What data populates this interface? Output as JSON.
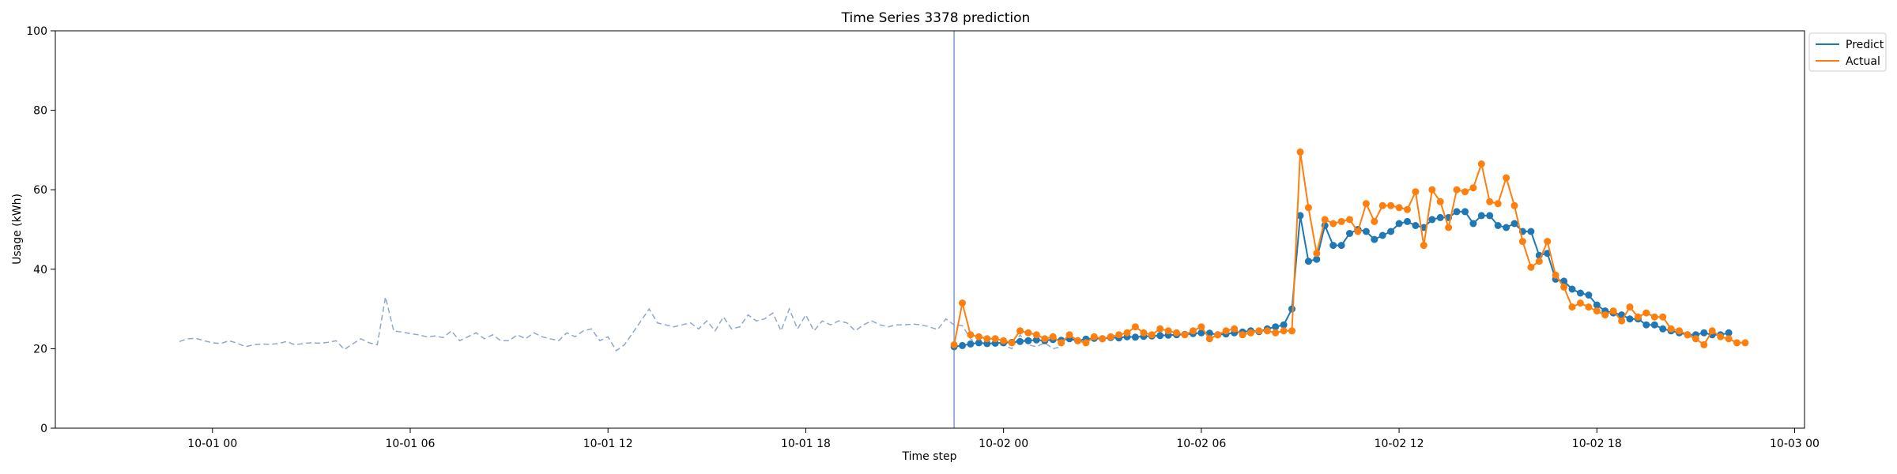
{
  "chart_data": {
    "type": "line",
    "title": "Time Series 3378 prediction",
    "xlabel": "Time step",
    "ylabel": "Usage (kWh)",
    "ylim": [
      0,
      100
    ],
    "yticks": [
      0,
      20,
      40,
      60,
      80,
      100
    ],
    "xlim": [
      "2023-09-30 19:14",
      "2023-10-03 00:18"
    ],
    "xticks": [
      {
        "t": "2023-10-01 00:00",
        "label": "10-01 00"
      },
      {
        "t": "2023-10-01 06:00",
        "label": "10-01 06"
      },
      {
        "t": "2023-10-01 12:00",
        "label": "10-01 12"
      },
      {
        "t": "2023-10-01 18:00",
        "label": "10-01 18"
      },
      {
        "t": "2023-10-02 00:00",
        "label": "10-02 00"
      },
      {
        "t": "2023-10-02 06:00",
        "label": "10-02 06"
      },
      {
        "t": "2023-10-02 12:00",
        "label": "10-02 12"
      },
      {
        "t": "2023-10-02 18:00",
        "label": "10-02 18"
      },
      {
        "t": "2023-10-03 00:00",
        "label": "10-03 00"
      }
    ],
    "grid": false,
    "legend_position": "outside-top-right",
    "forecast_start": "2023-10-01 22:30",
    "history": {
      "start": "2023-09-30 23:00",
      "step_minutes": 15,
      "color": "#8fa8c8",
      "style": "dashed",
      "values": [
        21.8,
        22.5,
        22.6,
        22.0,
        21.5,
        21.3,
        22.0,
        21.4,
        20.5,
        21.0,
        21.2,
        21.1,
        21.3,
        21.8,
        21.0,
        21.3,
        21.5,
        21.4,
        21.6,
        22.0,
        19.8,
        21.2,
        22.5,
        21.5,
        21.0,
        33.0,
        24.5,
        24.2,
        23.8,
        23.5,
        23.0,
        23.2,
        22.8,
        24.5,
        22.0,
        23.0,
        24.0,
        22.5,
        23.5,
        22.0,
        22.0,
        23.5,
        22.5,
        24.0,
        23.0,
        22.5,
        22.0,
        24.0,
        23.0,
        24.5,
        25.0,
        22.0,
        23.0,
        19.5,
        21.0,
        24.0,
        27.0,
        30.0,
        26.5,
        26.0,
        25.5,
        26.0,
        26.5,
        25.0,
        27.0,
        24.5,
        28.0,
        25.0,
        25.5,
        28.5,
        27.0,
        27.5,
        29.0,
        24.5,
        30.0,
        25.0,
        28.5,
        24.5,
        27.0,
        26.0,
        27.0,
        26.5,
        24.5,
        26.0,
        27.0,
        26.0,
        25.5,
        26.0,
        26.0,
        26.2,
        26.0,
        25.5,
        24.8,
        27.5,
        26.0,
        25.8,
        22.5,
        21.0,
        21.5,
        20.8,
        21.0,
        20.0,
        23.5,
        21.0,
        20.5,
        21.5,
        20.0,
        20.5
      ]
    },
    "series": [
      {
        "name": "Predict",
        "color": "#1f77b4",
        "start": "2023-10-01 22:30",
        "step_minutes": 15,
        "values": [
          20.5,
          20.8,
          21.2,
          21.5,
          21.3,
          21.4,
          21.5,
          21.6,
          21.8,
          22.0,
          22.2,
          22.0,
          22.3,
          22.1,
          22.5,
          22.0,
          22.4,
          22.6,
          22.5,
          22.8,
          22.7,
          23.0,
          22.9,
          23.1,
          23.2,
          23.3,
          23.4,
          23.5,
          23.6,
          23.8,
          24.0,
          23.9,
          23.5,
          23.7,
          24.0,
          24.2,
          24.5,
          24.3,
          25.0,
          25.5,
          26.0,
          30.0,
          53.5,
          42.0,
          42.5,
          51.0,
          46.0,
          46.0,
          49.0,
          50.0,
          49.5,
          47.5,
          48.5,
          49.5,
          51.5,
          52.0,
          51.0,
          50.5,
          52.5,
          53.0,
          53.0,
          54.5,
          54.5,
          51.5,
          53.5,
          53.5,
          51.0,
          50.5,
          51.5,
          49.5,
          49.5,
          43.5,
          44.0,
          37.5,
          37.0,
          35.0,
          34.0,
          33.5,
          31.0,
          29.5,
          29.0,
          28.5,
          27.5,
          27.5,
          26.0,
          26.0,
          25.0,
          24.5,
          24.0,
          23.5,
          23.5,
          24.0,
          23.5,
          23.5,
          24.0
        ]
      },
      {
        "name": "Actual",
        "color": "#ff7f0e",
        "start": "2023-10-01 22:30",
        "step_minutes": 15,
        "values": [
          21.0,
          31.5,
          23.5,
          23.0,
          22.5,
          22.5,
          22.0,
          21.5,
          24.5,
          24.0,
          23.5,
          22.5,
          23.0,
          21.5,
          23.5,
          22.0,
          21.5,
          23.0,
          22.5,
          23.0,
          23.5,
          24.0,
          25.5,
          24.0,
          23.5,
          25.0,
          24.5,
          24.0,
          23.5,
          24.5,
          25.5,
          22.5,
          23.5,
          24.5,
          25.0,
          23.5,
          24.0,
          24.5,
          24.5,
          24.0,
          24.5,
          24.5,
          69.5,
          55.5,
          44.0,
          52.5,
          51.5,
          52.0,
          52.5,
          49.5,
          56.5,
          52.0,
          56.0,
          56.0,
          55.5,
          55.0,
          59.5,
          46.0,
          60.0,
          57.0,
          50.5,
          60.0,
          59.5,
          60.5,
          66.5,
          57.0,
          56.5,
          63.0,
          56.0,
          47.0,
          40.5,
          42.0,
          47.0,
          38.5,
          35.5,
          30.5,
          31.5,
          30.5,
          29.5,
          28.5,
          29.5,
          27.0,
          30.5,
          28.0,
          29.0,
          28.0,
          28.0,
          25.0,
          24.5,
          23.5,
          22.5,
          21.0,
          24.5,
          23.0,
          22.5,
          21.5,
          21.5
        ]
      }
    ]
  }
}
